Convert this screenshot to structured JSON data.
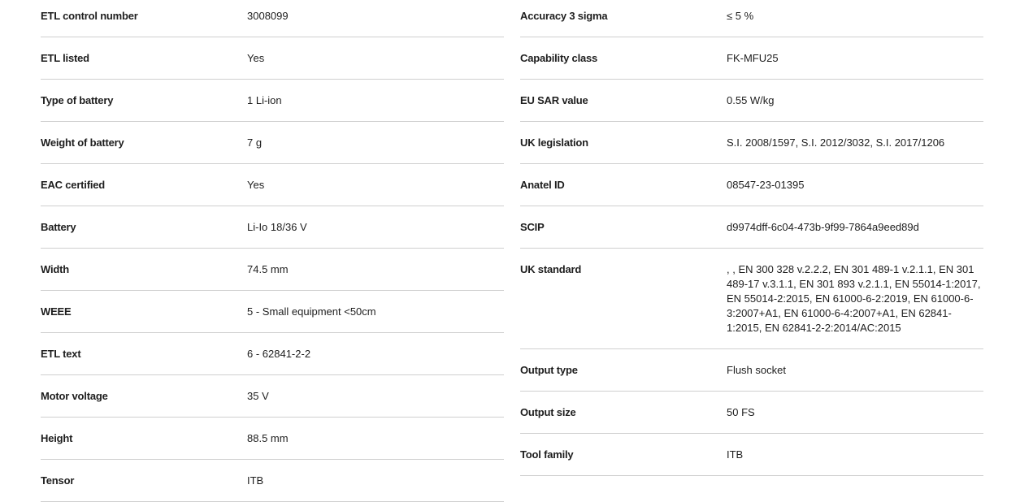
{
  "left": [
    {
      "label": "ETL control number",
      "value": "3008099"
    },
    {
      "label": "ETL listed",
      "value": "Yes"
    },
    {
      "label": "Type of battery",
      "value": "1 Li-ion"
    },
    {
      "label": "Weight of battery",
      "value": "7 g"
    },
    {
      "label": "EAC certified",
      "value": "Yes"
    },
    {
      "label": "Battery",
      "value": "Li-Io 18/36 V"
    },
    {
      "label": "Width",
      "value": "74.5 mm"
    },
    {
      "label": "WEEE",
      "value": "5 - Small equipment <50cm"
    },
    {
      "label": "ETL text",
      "value": "6 - 62841-2-2"
    },
    {
      "label": "Motor voltage",
      "value": "35 V"
    },
    {
      "label": "Height",
      "value": "88.5 mm"
    },
    {
      "label": "Tensor",
      "value": "ITB"
    }
  ],
  "right": [
    {
      "label": "Accuracy 3 sigma",
      "value": "≤ 5 %"
    },
    {
      "label": "Capability class",
      "value": "FK-MFU25"
    },
    {
      "label": "EU SAR value",
      "value": "0.55 W/kg"
    },
    {
      "label": "UK legislation",
      "value": "S.I. 2008/1597, S.I. 2012/3032, S.I. 2017/1206"
    },
    {
      "label": "Anatel ID",
      "value": "08547-23-01395"
    },
    {
      "label": "SCIP",
      "value": "d9974dff-6c04-473b-9f99-7864a9eed89d"
    },
    {
      "label": "UK standard",
      "value": ", , EN 300 328 v.2.2.2, EN 301 489-1 v.2.1.1, EN 301 489-17 v.3.1.1, EN 301 893 v.2.1.1, EN 55014-1:2017, EN 55014-2:2015, EN 61000-6-2:2019, EN 61000-6-3:2007+A1, EN 61000-6-4:2007+A1, EN 62841-1:2015, EN 62841-2-2:2014/AC:2015"
    },
    {
      "label": "Output type",
      "value": "Flush socket"
    },
    {
      "label": "Output size",
      "value": "50 FS"
    },
    {
      "label": "Tool family",
      "value": "ITB"
    }
  ]
}
